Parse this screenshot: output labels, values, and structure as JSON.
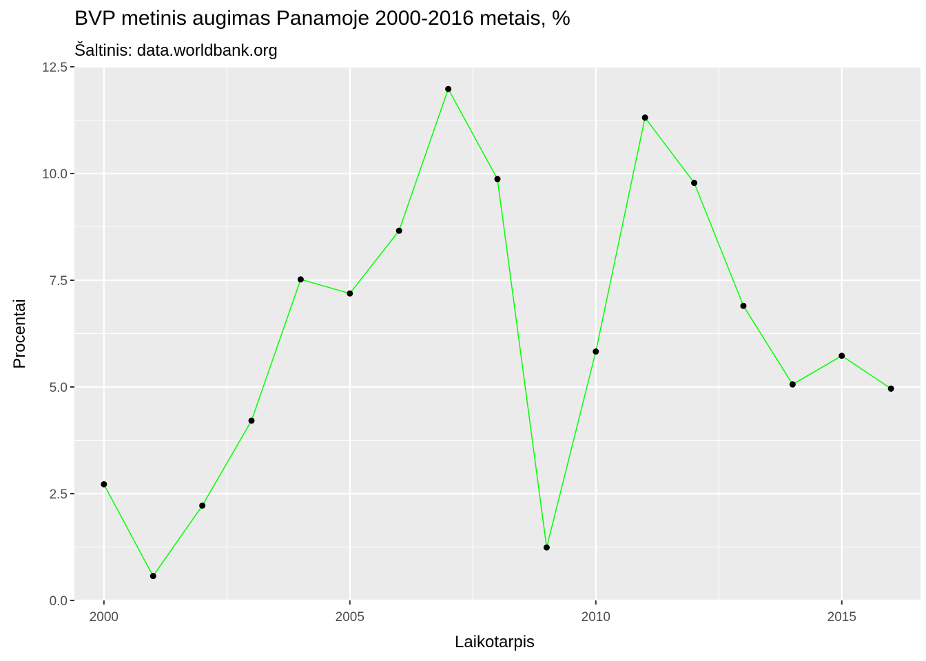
{
  "chart_data": {
    "type": "line",
    "title": "BVP metinis augimas Panamoje 2000-2016 metais, %",
    "subtitle": "Šaltinis: data.worldbank.org",
    "xlabel": "Laikotarpis",
    "ylabel": "Procentai",
    "x": [
      2000,
      2001,
      2002,
      2003,
      2004,
      2005,
      2006,
      2007,
      2008,
      2009,
      2010,
      2011,
      2012,
      2013,
      2014,
      2015,
      2016
    ],
    "series": [
      {
        "values": [
          2.72,
          0.57,
          2.22,
          4.21,
          7.52,
          7.19,
          8.66,
          11.98,
          9.87,
          1.24,
          5.83,
          11.31,
          9.78,
          6.9,
          5.06,
          5.73,
          4.96
        ]
      }
    ],
    "xlim": [
      1999.4,
      2016.6
    ],
    "ylim": [
      0,
      12.5
    ],
    "x_ticks": [
      2000,
      2005,
      2010,
      2015
    ],
    "y_ticks": [
      "0.0",
      "2.5",
      "5.0",
      "7.5",
      "10.0",
      "12.5"
    ],
    "grid": true,
    "colors": {
      "panel": "#ebebeb",
      "grid": "#ffffff",
      "line": "#00ff00",
      "point": "#000000"
    }
  }
}
